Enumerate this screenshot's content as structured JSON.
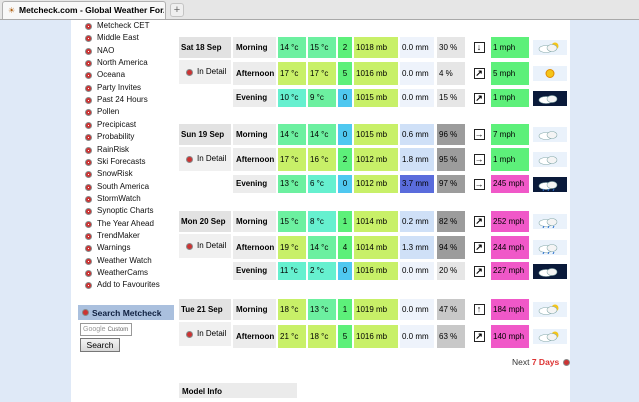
{
  "browser": {
    "tab_title": "Metcheck.com - Global Weather For...",
    "new_tab_label": "+"
  },
  "sidebar": {
    "items": [
      "Metcheck CET",
      "Middle East",
      "NAO",
      "North America",
      "Oceana",
      "Party Invites",
      "Past 24 Hours",
      "Pollen",
      "Precipicast",
      "Probability",
      "RainRisk",
      "Ski Forecasts",
      "SnowRisk",
      "South America",
      "StormWatch",
      "Synoptic Charts",
      "The Year Ahead",
      "TrendMaker",
      "Warnings",
      "Weather Watch",
      "WeatherCams",
      "Add to Favourites"
    ],
    "search_header": "Search Metcheck",
    "search_placeholder": "Google",
    "search_custom": "Custom",
    "search_button": "Search"
  },
  "colors": {
    "temp_green": "#6cf0a0",
    "mint": "#66f0cf",
    "lime": "#c8f068",
    "pressure_green": "#c8f068",
    "wind_green": "#5df07a",
    "wind_magenta": "#f058c8",
    "rain_lightblue": "#cfe0f7",
    "rain_blue": "#5a6cdc",
    "cloud_grey_dark": "#9c9c9c",
    "cloud_grey_mid": "#c8c8c8",
    "cloud_grey_light": "#e6e6e6"
  },
  "forecast": {
    "detail_label": "In Detail",
    "days": [
      {
        "day": "Sat 18 Sep",
        "rows": [
          {
            "period": "Morning",
            "temp": "14 °c",
            "feels": "15 °c",
            "wind_force": "2",
            "pressure": "1018 mb",
            "rain": "0.0 mm",
            "cloud": "30 %",
            "dir_icon": "down-arrow-icon",
            "dir": "↓",
            "wind": "1 mph",
            "weather_icon": "sunny-intervals-icon"
          },
          {
            "period": "Afternoon",
            "temp": "17 °c",
            "feels": "17 °c",
            "wind_force": "5",
            "pressure": "1016 mb",
            "rain": "0.0 mm",
            "cloud": "4 %",
            "dir_icon": "north-east-arrow-icon",
            "dir": "↗",
            "wind": "5 mph",
            "weather_icon": "sun-icon"
          },
          {
            "period": "Evening",
            "temp": "10 °c",
            "feels": "9 °c",
            "wind_force": "0",
            "pressure": "1015 mb",
            "rain": "0.0 mm",
            "cloud": "15 %",
            "dir_icon": "north-east-arrow-icon",
            "dir": "↗",
            "wind": "1 mph",
            "weather_icon": "night-cloud-icon"
          }
        ]
      },
      {
        "day": "Sun 19 Sep",
        "rows": [
          {
            "period": "Morning",
            "temp": "14 °c",
            "feels": "14 °c",
            "wind_force": "0",
            "pressure": "1015 mb",
            "rain": "0.6 mm",
            "cloud": "96 %",
            "dir_icon": "east-arrow-icon",
            "dir": "→",
            "wind": "7 mph",
            "weather_icon": "cloudy-icon"
          },
          {
            "period": "Afternoon",
            "temp": "17 °c",
            "feels": "16 °c",
            "wind_force": "2",
            "pressure": "1012 mb",
            "rain": "1.8 mm",
            "cloud": "95 %",
            "dir_icon": "east-arrow-icon",
            "dir": "→",
            "wind": "1 mph",
            "weather_icon": "cloudy-icon"
          },
          {
            "period": "Evening",
            "temp": "13 °c",
            "feels": "6 °c",
            "wind_force": "0",
            "pressure": "1012 mb",
            "rain": "3.7 mm",
            "cloud": "97 %",
            "dir_icon": "east-arrow-icon",
            "dir": "→",
            "wind": "245 mph",
            "weather_icon": "night-rain-icon"
          }
        ]
      },
      {
        "day": "Mon 20 Sep",
        "rows": [
          {
            "period": "Morning",
            "temp": "15 °c",
            "feels": "8 °c",
            "wind_force": "1",
            "pressure": "1014 mb",
            "rain": "0.2 mm",
            "cloud": "82 %",
            "dir_icon": "north-east-arrow-icon",
            "dir": "↗",
            "wind": "252 mph",
            "weather_icon": "cloudy-rain-icon"
          },
          {
            "period": "Afternoon",
            "temp": "19 °c",
            "feels": "14 °c",
            "wind_force": "4",
            "pressure": "1014 mb",
            "rain": "1.3 mm",
            "cloud": "94 %",
            "dir_icon": "north-east-arrow-icon",
            "dir": "↗",
            "wind": "244 mph",
            "weather_icon": "cloudy-rain-icon"
          },
          {
            "period": "Evening",
            "temp": "11 °c",
            "feels": "2 °c",
            "wind_force": "0",
            "pressure": "1016 mb",
            "rain": "0.0 mm",
            "cloud": "20 %",
            "dir_icon": "north-east-arrow-icon",
            "dir": "↗",
            "wind": "227 mph",
            "weather_icon": "night-cloud-icon"
          }
        ]
      },
      {
        "day": "Tue 21 Sep",
        "rows": [
          {
            "period": "Morning",
            "temp": "18 °c",
            "feels": "13 °c",
            "wind_force": "1",
            "pressure": "1019 mb",
            "rain": "0.0 mm",
            "cloud": "47 %",
            "dir_icon": "up-arrow-icon",
            "dir": "↑",
            "wind": "184 mph",
            "weather_icon": "sunny-intervals-icon"
          },
          {
            "period": "Afternoon",
            "temp": "21 °c",
            "feels": "18 °c",
            "wind_force": "5",
            "pressure": "1016 mb",
            "rain": "0.0 mm",
            "cloud": "63 %",
            "dir_icon": "north-east-arrow-icon",
            "dir": "↗",
            "wind": "140 mph",
            "weather_icon": "sunny-intervals-icon"
          }
        ]
      }
    ]
  },
  "next": {
    "prefix": "Next ",
    "days": "7 Days"
  },
  "model_info": "Model Info"
}
